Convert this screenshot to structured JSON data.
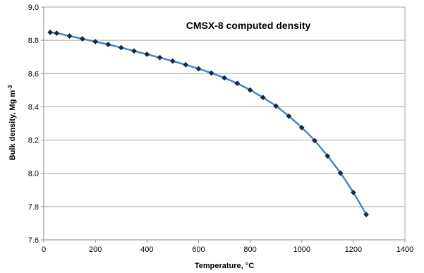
{
  "chart_data": {
    "type": "line",
    "title": "CMSX-8 computed density",
    "xlabel": "Temperature,",
    "xlabel_unit": "°C",
    "ylabel": "Bulk density,",
    "ylabel_unit": "Mg m",
    "ylabel_unit_exp": "-3",
    "xlim": [
      0,
      1400
    ],
    "ylim": [
      7.6,
      9.0
    ],
    "x_ticks": [
      "0",
      "200",
      "400",
      "600",
      "800",
      "1000",
      "1200",
      "1400"
    ],
    "y_ticks": [
      "7.6",
      "7.8",
      "8.0",
      "8.2",
      "8.4",
      "8.6",
      "8.8",
      "9.0"
    ],
    "grid": "horizontal",
    "legend": "none",
    "series": [
      {
        "x": [
          25,
          50,
          100,
          150,
          200,
          250,
          300,
          350,
          400,
          450,
          500,
          550,
          600,
          650,
          700,
          750,
          800,
          850,
          900,
          950,
          1000,
          1050,
          1100,
          1150,
          1200,
          1250
        ],
        "y": [
          8.848,
          8.843,
          8.826,
          8.809,
          8.792,
          8.775,
          8.756,
          8.736,
          8.716,
          8.696,
          8.675,
          8.653,
          8.629,
          8.603,
          8.574,
          8.541,
          8.501,
          8.456,
          8.405,
          8.344,
          8.275,
          8.197,
          8.104,
          8.002,
          7.885,
          7.752
        ],
        "line_color": "#4A86C6",
        "marker_color": "#1B2A48",
        "marker": "diamond"
      }
    ]
  }
}
